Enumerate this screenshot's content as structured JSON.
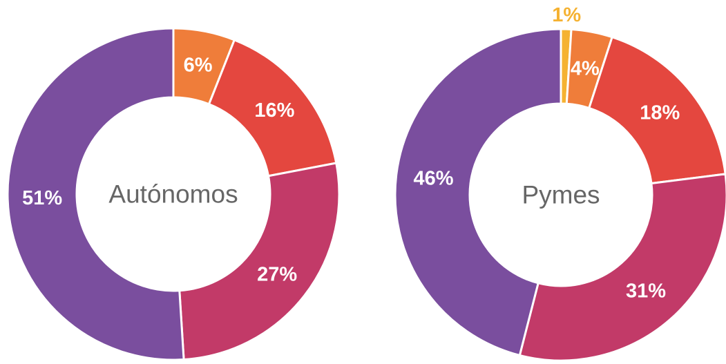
{
  "chart_data": [
    {
      "type": "donut",
      "title": "Autónomos",
      "values": [
        6,
        16,
        27,
        51
      ],
      "value_labels": [
        "6%",
        "16%",
        "27%",
        "51%"
      ],
      "colors": [
        "#ef7d3a",
        "#e4473f",
        "#c23a68",
        "#7a4e9e"
      ]
    },
    {
      "type": "donut",
      "title": "Pymes",
      "values": [
        1,
        4,
        18,
        31,
        46
      ],
      "value_labels": [
        "1%",
        "4%",
        "18%",
        "31%",
        "46%"
      ],
      "colors": [
        "#f5b232",
        "#ef7d3a",
        "#e4473f",
        "#c23a68",
        "#7a4e9e"
      ]
    }
  ]
}
